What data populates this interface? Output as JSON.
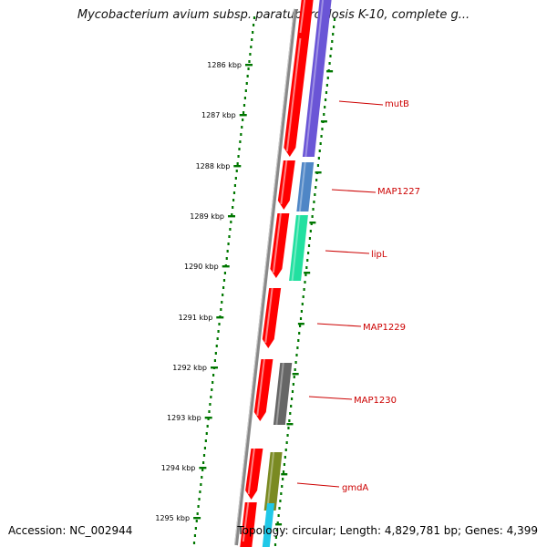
{
  "header": {
    "title": "Mycobacterium avium subsp. paratuberculosis K-10, complete g..."
  },
  "kbp_ticks": [
    "1286 kbp",
    "1287 kbp",
    "1288 kbp",
    "1289 kbp",
    "1290 kbp",
    "1291 kbp",
    "1292 kbp",
    "1293 kbp",
    "1294 kbp",
    "1295 kbp"
  ],
  "genes": [
    {
      "label": "mutB",
      "lane_color": "#6a55d6"
    },
    {
      "label": "MAP1227",
      "lane_color": "#4f86c6"
    },
    {
      "label": "lipL",
      "lane_color": "#22e0a0"
    },
    {
      "label": "MAP1229",
      "lane_color": null
    },
    {
      "label": "MAP1230",
      "lane_color": "#666666"
    },
    {
      "label": "gmdA",
      "lane_color": "#7a8a22"
    }
  ],
  "colors": {
    "cds": "#ff0000",
    "tick": "#007700",
    "label": "#cc0000",
    "backbone": "#888888",
    "extra_lane": "#20c8e8"
  },
  "footer": {
    "accession": "Accession: NC_002944",
    "summary": "Topology: circular; Length: 4,829,781 bp; Genes: 4,399"
  }
}
